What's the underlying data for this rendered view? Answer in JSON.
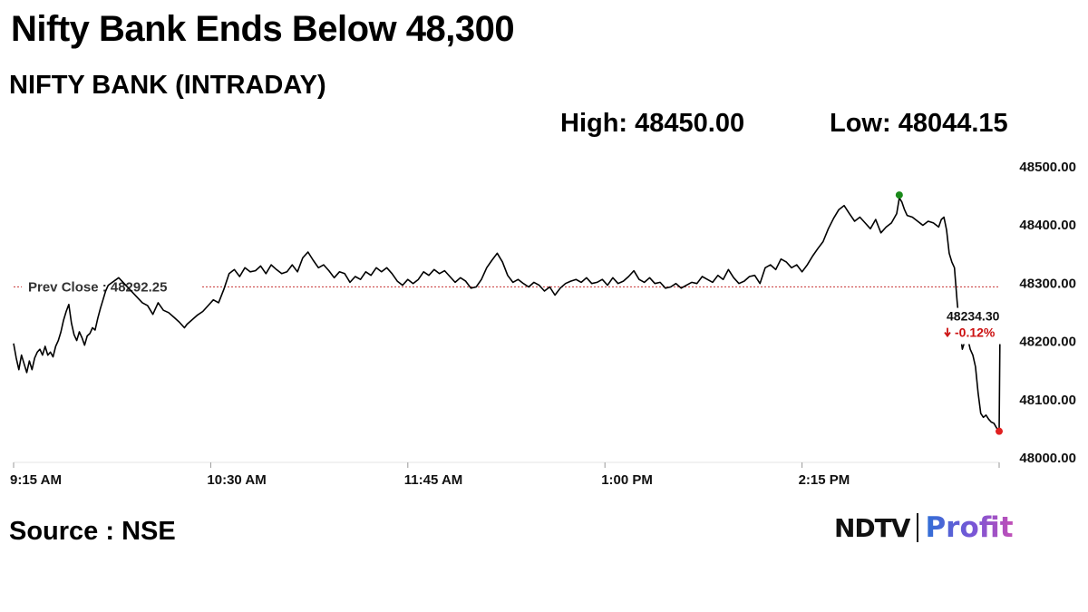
{
  "header": {
    "headline": "Nifty Bank Ends Below 48,300",
    "subtitle": "NIFTY BANK (INTRADAY)",
    "high_text": "High: 48450.00",
    "low_text": "Low: 48044.15"
  },
  "footer": {
    "source": "Source : NSE",
    "logo_left": "NDTV",
    "logo_right": "Profit"
  },
  "colors": {
    "line": "#000000",
    "grid": "#e6e6e6",
    "prev_close_line": "#c83232",
    "high_marker": "#1a8a1a",
    "low_marker": "#e02020",
    "last_marker": "#1a1aa8",
    "change_negative": "#cc1111"
  },
  "chart_data": {
    "type": "line",
    "title": "NIFTY BANK (INTRADAY)",
    "xlabel": "",
    "ylabel": "",
    "x_tick_labels": [
      "9:15 AM",
      "10:30 AM",
      "11:45 AM",
      "1:00 PM",
      "2:15 PM"
    ],
    "x_tick_minutes": [
      0,
      75,
      150,
      225,
      300
    ],
    "x_range_minutes": [
      0,
      375
    ],
    "y_tick_labels": [
      "48500.00",
      "48400.00",
      "48300.00",
      "48200.00",
      "48100.00",
      "48000.00"
    ],
    "y_ticks": [
      48500,
      48400,
      48300,
      48200,
      48100,
      48000
    ],
    "ylim": [
      48000,
      48500
    ],
    "y_axis_position": "right",
    "grid": false,
    "prev_close": {
      "label": "Prev Close : 48292.25",
      "value": 48292.25
    },
    "high": 48450.0,
    "low": 48044.15,
    "last": {
      "value": 48234.3,
      "value_text": "48234.30",
      "change_text": "-0.12%",
      "direction": "down"
    },
    "series": [
      {
        "values": [
          [
            0,
            48195
          ],
          [
            1,
            48170
          ],
          [
            2,
            48150
          ],
          [
            3,
            48175
          ],
          [
            4,
            48160
          ],
          [
            5,
            48145
          ],
          [
            6,
            48165
          ],
          [
            7,
            48150
          ],
          [
            8,
            48170
          ],
          [
            9,
            48180
          ],
          [
            10,
            48185
          ],
          [
            11,
            48175
          ],
          [
            12,
            48190
          ],
          [
            13,
            48175
          ],
          [
            14,
            48180
          ],
          [
            15,
            48172
          ],
          [
            16,
            48190
          ],
          [
            17,
            48200
          ],
          [
            18,
            48215
          ],
          [
            19,
            48235
          ],
          [
            20,
            48250
          ],
          [
            21,
            48262
          ],
          [
            22,
            48230
          ],
          [
            23,
            48210
          ],
          [
            24,
            48200
          ],
          [
            25,
            48215
          ],
          [
            26,
            48205
          ],
          [
            27,
            48192
          ],
          [
            28,
            48208
          ],
          [
            29,
            48212
          ],
          [
            30,
            48222
          ],
          [
            31,
            48218
          ],
          [
            32,
            48238
          ],
          [
            33,
            48255
          ],
          [
            34,
            48270
          ],
          [
            35,
            48285
          ],
          [
            36,
            48295
          ],
          [
            40,
            48308
          ],
          [
            49,
            48265
          ],
          [
            51,
            48260
          ],
          [
            53,
            48245
          ],
          [
            55,
            48265
          ],
          [
            57,
            48252
          ],
          [
            59,
            48248
          ],
          [
            61,
            48240
          ],
          [
            63,
            48232
          ],
          [
            65,
            48222
          ],
          [
            66,
            48228
          ],
          [
            68,
            48236
          ],
          [
            70,
            48244
          ],
          [
            72,
            48250
          ],
          [
            74,
            48260
          ],
          [
            76,
            48270
          ],
          [
            78,
            48265
          ],
          [
            80,
            48288
          ],
          [
            82,
            48315
          ],
          [
            84,
            48322
          ],
          [
            86,
            48310
          ],
          [
            88,
            48325
          ],
          [
            90,
            48318
          ],
          [
            92,
            48320
          ],
          [
            94,
            48328
          ],
          [
            96,
            48315
          ],
          [
            98,
            48330
          ],
          [
            100,
            48322
          ],
          [
            102,
            48315
          ],
          [
            104,
            48318
          ],
          [
            106,
            48330
          ],
          [
            108,
            48318
          ],
          [
            110,
            48342
          ],
          [
            112,
            48352
          ],
          [
            114,
            48338
          ],
          [
            116,
            48325
          ],
          [
            118,
            48330
          ],
          [
            120,
            48320
          ],
          [
            122,
            48308
          ],
          [
            124,
            48318
          ],
          [
            126,
            48315
          ],
          [
            128,
            48300
          ],
          [
            130,
            48310
          ],
          [
            132,
            48305
          ],
          [
            134,
            48318
          ],
          [
            136,
            48312
          ],
          [
            138,
            48325
          ],
          [
            140,
            48318
          ],
          [
            142,
            48325
          ],
          [
            144,
            48315
          ],
          [
            146,
            48302
          ],
          [
            148,
            48295
          ],
          [
            150,
            48305
          ],
          [
            152,
            48298
          ],
          [
            154,
            48305
          ],
          [
            156,
            48318
          ],
          [
            158,
            48312
          ],
          [
            160,
            48322
          ],
          [
            162,
            48315
          ],
          [
            164,
            48320
          ],
          [
            166,
            48310
          ],
          [
            168,
            48300
          ],
          [
            170,
            48308
          ],
          [
            172,
            48302
          ],
          [
            174,
            48290
          ],
          [
            176,
            48292
          ],
          [
            178,
            48305
          ],
          [
            180,
            48325
          ],
          [
            182,
            48338
          ],
          [
            184,
            48350
          ],
          [
            186,
            48335
          ],
          [
            188,
            48312
          ],
          [
            190,
            48300
          ],
          [
            192,
            48305
          ],
          [
            194,
            48298
          ],
          [
            196,
            48292
          ],
          [
            198,
            48300
          ],
          [
            200,
            48295
          ],
          [
            202,
            48285
          ],
          [
            204,
            48292
          ],
          [
            206,
            48278
          ],
          [
            208,
            48290
          ],
          [
            210,
            48298
          ],
          [
            212,
            48302
          ],
          [
            214,
            48305
          ],
          [
            216,
            48300
          ],
          [
            218,
            48308
          ],
          [
            220,
            48298
          ],
          [
            222,
            48300
          ],
          [
            224,
            48305
          ],
          [
            226,
            48295
          ],
          [
            228,
            48308
          ],
          [
            230,
            48298
          ],
          [
            232,
            48302
          ],
          [
            234,
            48310
          ],
          [
            236,
            48320
          ],
          [
            238,
            48305
          ],
          [
            240,
            48300
          ],
          [
            242,
            48308
          ],
          [
            244,
            48298
          ],
          [
            246,
            48300
          ],
          [
            248,
            48290
          ],
          [
            250,
            48292
          ],
          [
            252,
            48298
          ],
          [
            254,
            48290
          ],
          [
            256,
            48295
          ],
          [
            258,
            48300
          ],
          [
            260,
            48298
          ],
          [
            262,
            48310
          ],
          [
            264,
            48305
          ],
          [
            266,
            48300
          ],
          [
            268,
            48312
          ],
          [
            270,
            48305
          ],
          [
            272,
            48322
          ],
          [
            274,
            48308
          ],
          [
            276,
            48298
          ],
          [
            278,
            48302
          ],
          [
            280,
            48310
          ],
          [
            282,
            48312
          ],
          [
            284,
            48298
          ],
          [
            286,
            48325
          ],
          [
            288,
            48330
          ],
          [
            290,
            48322
          ],
          [
            292,
            48340
          ],
          [
            294,
            48335
          ],
          [
            296,
            48325
          ],
          [
            298,
            48330
          ],
          [
            300,
            48318
          ],
          [
            302,
            48330
          ],
          [
            304,
            48345
          ],
          [
            306,
            48358
          ],
          [
            308,
            48370
          ],
          [
            310,
            48392
          ],
          [
            312,
            48410
          ],
          [
            314,
            48425
          ],
          [
            316,
            48432
          ],
          [
            318,
            48418
          ],
          [
            320,
            48405
          ],
          [
            322,
            48412
          ],
          [
            324,
            48402
          ],
          [
            326,
            48392
          ],
          [
            328,
            48408
          ],
          [
            330,
            48385
          ],
          [
            332,
            48395
          ],
          [
            334,
            48402
          ],
          [
            336,
            48418
          ],
          [
            337,
            48445
          ],
          [
            338,
            48438
          ],
          [
            339,
            48425
          ],
          [
            340,
            48415
          ],
          [
            342,
            48412
          ],
          [
            344,
            48405
          ],
          [
            346,
            48398
          ],
          [
            348,
            48405
          ],
          [
            350,
            48402
          ],
          [
            352,
            48395
          ],
          [
            353,
            48408
          ],
          [
            354,
            48412
          ],
          [
            355,
            48390
          ],
          [
            356,
            48350
          ],
          [
            357,
            48335
          ],
          [
            358,
            48325
          ],
          [
            359,
            48268
          ],
          [
            360,
            48220
          ],
          [
            361,
            48185
          ],
          [
            362,
            48200
          ],
          [
            363,
            48205
          ],
          [
            364,
            48185
          ],
          [
            365,
            48175
          ],
          [
            366,
            48155
          ],
          [
            367,
            48110
          ],
          [
            368,
            48075
          ],
          [
            369,
            48068
          ],
          [
            370,
            48072
          ],
          [
            371,
            48065
          ],
          [
            372,
            48060
          ],
          [
            373,
            48058
          ],
          [
            374,
            48050
          ],
          [
            375,
            48044
          ],
          [
            375.3,
            48210
          ],
          [
            375.6,
            48234
          ]
        ]
      }
    ]
  }
}
